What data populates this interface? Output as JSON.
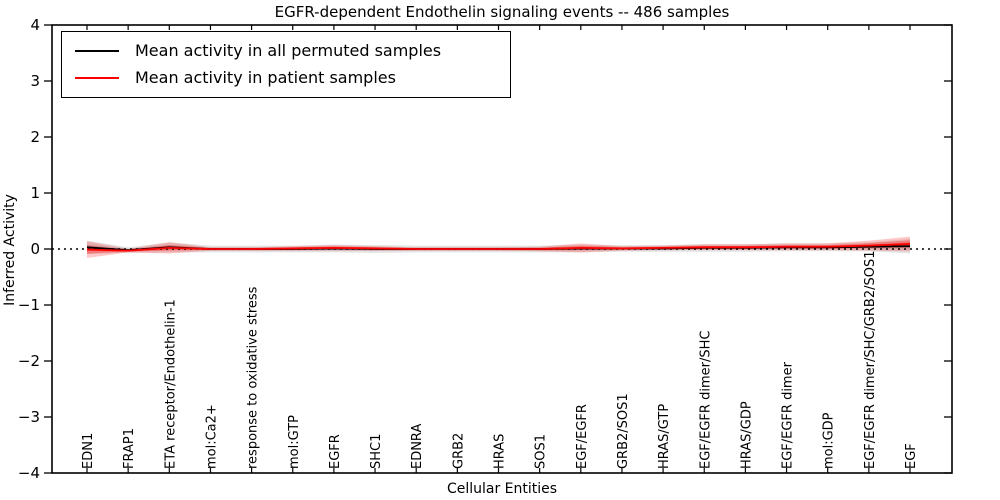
{
  "chart_data": {
    "type": "line",
    "title": "EGFR-dependent Endothelin signaling events -- 486 samples",
    "xlabel": "Cellular Entities",
    "ylabel": "Inferred Activity",
    "ylim": [
      -4,
      4
    ],
    "yticks": [
      -4,
      -3,
      -2,
      -1,
      0,
      1,
      2,
      3,
      4
    ],
    "grid": false,
    "zero_line_style": "dotted",
    "legend_position": "upper left",
    "categories": [
      "EDN1",
      "FRAP1",
      "ETA receptor/Endothelin-1",
      "mol:Ca2+",
      "response to oxidative stress",
      "mol:GTP",
      "EGFR",
      "SHC1",
      "EDNRA",
      "GRB2",
      "HRAS",
      "SOS1",
      "EGF/EGFR",
      "GRB2/SOS1",
      "HRAS/GTP",
      "EGF/EGFR dimer/SHC",
      "HRAS/GDP",
      "EGF/EGFR dimer",
      "mol:GDP",
      "EGF/EGFR dimer/SHC/GRB2/SOS1",
      "EGF"
    ],
    "series": [
      {
        "name": "Mean activity in all permuted samples",
        "color": "#000000",
        "band_color": "#888888",
        "values": [
          0.03,
          -0.02,
          0.03,
          0.0,
          0.0,
          0.0,
          0.01,
          0.0,
          0.0,
          0.0,
          0.0,
          0.0,
          0.01,
          0.01,
          0.01,
          0.02,
          0.02,
          0.03,
          0.03,
          0.04,
          0.05
        ],
        "band_halfwidth": [
          0.12,
          0.05,
          0.09,
          0.06,
          0.06,
          0.06,
          0.07,
          0.07,
          0.06,
          0.06,
          0.06,
          0.06,
          0.07,
          0.06,
          0.06,
          0.07,
          0.07,
          0.07,
          0.07,
          0.08,
          0.13
        ]
      },
      {
        "name": "Mean activity in patient samples",
        "color": "#ff0000",
        "band_color": "#ff0000",
        "values": [
          -0.01,
          -0.03,
          0.02,
          0.0,
          0.0,
          0.01,
          0.02,
          0.01,
          0.0,
          0.0,
          0.0,
          0.0,
          0.02,
          0.01,
          0.02,
          0.03,
          0.03,
          0.04,
          0.04,
          0.06,
          0.09
        ],
        "band_halfwidth": [
          0.15,
          0.03,
          0.1,
          0.03,
          0.03,
          0.04,
          0.05,
          0.04,
          0.03,
          0.03,
          0.03,
          0.04,
          0.08,
          0.04,
          0.04,
          0.05,
          0.05,
          0.06,
          0.06,
          0.09,
          0.13
        ]
      }
    ]
  }
}
